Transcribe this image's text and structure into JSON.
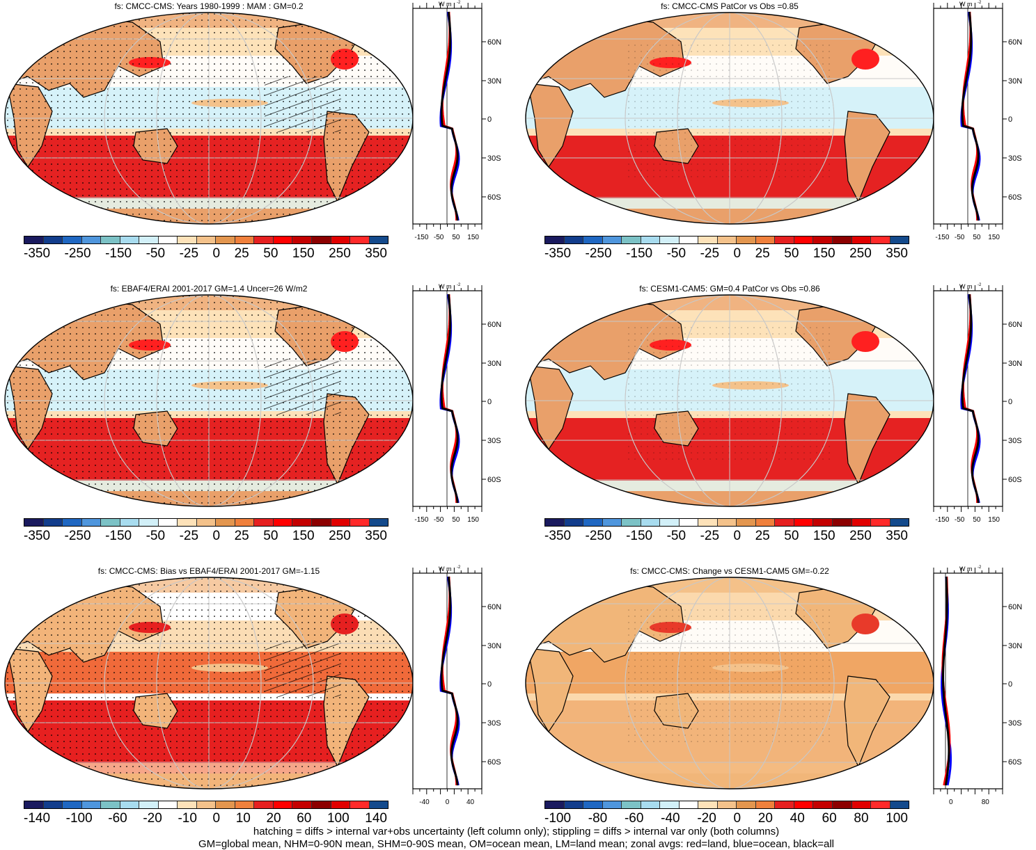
{
  "palette": [
    "#1a1a5e",
    "#123d8c",
    "#1f67c2",
    "#4f96dd",
    "#7cc2c6",
    "#a8dcef",
    "#d2f0f8",
    "#ffffff",
    "#fde2b9",
    "#f4c28b",
    "#e3964f",
    "#f0803c",
    "#e62020",
    "#ff0000",
    "#c40000",
    "#8c0000",
    "#e10000",
    "#ff2a2a",
    "#144a8c"
  ],
  "zonal_colors": {
    "land": "#ff0000",
    "ocean": "#0000ff",
    "all": "#000000"
  },
  "panels": [
    {
      "id": "p1",
      "title": "fs: CMCC-CMS: Years 1980-1999 : MAM : GM=0.2",
      "cb_labels": [
        "-350",
        "-250",
        "-150",
        "-50",
        "-25",
        "0",
        "25",
        "50",
        "150",
        "250",
        "350"
      ],
      "zx_ticks": [
        "-150",
        "-50",
        "50",
        "150"
      ],
      "zonal_unit": "W m",
      "lat_labels": [
        "60N",
        "30N",
        "0",
        "30S",
        "60S"
      ],
      "hatch": true
    },
    {
      "id": "p2",
      "title": "fs: CMCC-CMS PatCor vs Obs =0.85",
      "cb_labels": [
        "-350",
        "-250",
        "-150",
        "-50",
        "-25",
        "0",
        "25",
        "50",
        "150",
        "250",
        "350"
      ],
      "zx_ticks": [
        "-150",
        "-50",
        "50",
        "150"
      ],
      "zonal_unit": "W m",
      "lat_labels": [
        "60N",
        "30N",
        "0",
        "30S",
        "60S"
      ],
      "hatch": false
    },
    {
      "id": "p3",
      "title": "fs: EBAF4/ERAI 2001-2017 GM=1.4 Uncer=26 W/m2",
      "cb_labels": [
        "-350",
        "-250",
        "-150",
        "-50",
        "-25",
        "0",
        "25",
        "50",
        "150",
        "250",
        "350"
      ],
      "zx_ticks": [
        "-150",
        "-50",
        "50",
        "150"
      ],
      "zonal_unit": "W m",
      "lat_labels": [
        "60N",
        "30N",
        "0",
        "30S",
        "60S"
      ],
      "hatch": true
    },
    {
      "id": "p4",
      "title": "fs: CESM1-CAM5: GM=0.4 PatCor vs Obs =0.86",
      "cb_labels": [
        "-350",
        "-250",
        "-150",
        "-50",
        "-25",
        "0",
        "25",
        "50",
        "150",
        "250",
        "350"
      ],
      "zx_ticks": [
        "-150",
        "-50",
        "50",
        "150"
      ],
      "zonal_unit": "W m",
      "lat_labels": [
        "60N",
        "30N",
        "0",
        "30S",
        "60S"
      ],
      "hatch": false
    },
    {
      "id": "p5",
      "title": "fs: CMCC-CMS: Bias vs EBAF4/ERAI 2001-2017 GM=-1.15",
      "cb_labels": [
        "-140",
        "-100",
        "-60",
        "-20",
        "-10",
        "0",
        "10",
        "20",
        "60",
        "100",
        "140"
      ],
      "zx_ticks": [
        "-40",
        "0",
        "40"
      ],
      "zonal_unit": "W m",
      "lat_labels": [
        "60N",
        "30N",
        "0",
        "30S",
        "60S"
      ],
      "hatch": true
    },
    {
      "id": "p6",
      "title": "fs: CMCC-CMS: Change vs CESM1-CAM5 GM=-0.22",
      "cb_labels": [
        "-100",
        "-80",
        "-60",
        "-40",
        "-20",
        "0",
        "20",
        "40",
        "60",
        "80",
        "100"
      ],
      "zx_ticks": [
        "0",
        "80"
      ],
      "zonal_unit": "W m",
      "lat_labels": [
        "60N",
        "30N",
        "0",
        "30S",
        "60S"
      ],
      "hatch": false
    }
  ],
  "footer": {
    "line1": "hatching = diffs > internal var+obs uncertainty (left column only); stippling = diffs > internal var only (both columns)",
    "line2": "GM=global mean, NHM=0-90N mean, SHM=0-90S mean, OM=ocean mean, LM=land mean; zonal avgs: red=land, blue=ocean, black=all"
  }
}
